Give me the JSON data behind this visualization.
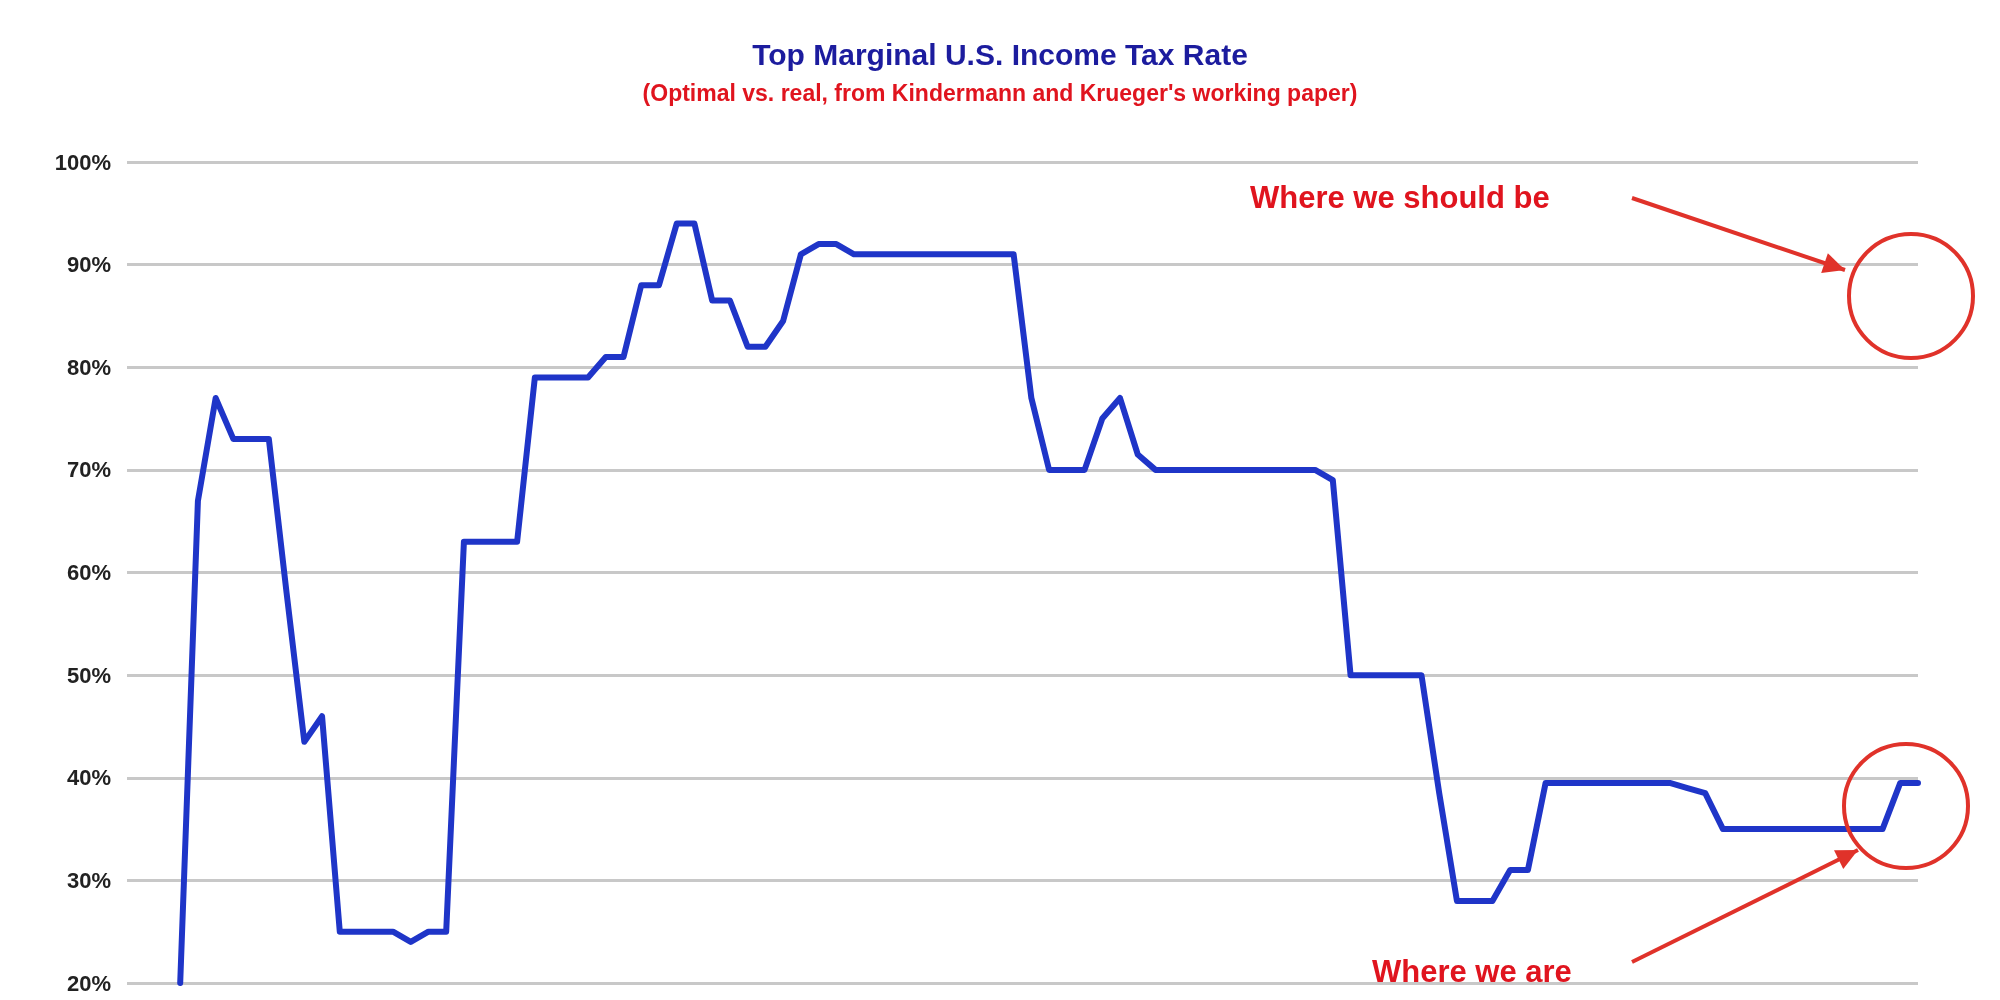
{
  "chart_data": {
    "type": "line",
    "title": "Top Marginal U.S. Income Tax Rate",
    "subtitle": "(Optimal vs. real, from Kindermann and Krueger's working paper)",
    "categories": [
      null,
      null,
      null,
      null,
      null,
      null,
      null,
      null,
      null,
      null,
      null,
      null,
      null,
      null,
      null,
      null,
      null,
      null,
      null,
      null,
      null,
      null,
      null,
      null,
      null,
      null,
      null,
      null,
      null,
      null,
      null,
      null,
      null,
      null,
      null,
      null,
      null,
      null,
      null,
      null,
      null,
      null,
      null,
      null,
      null,
      null,
      null,
      null,
      null,
      null,
      null,
      null,
      null,
      null,
      null,
      null,
      null,
      null,
      null,
      null,
      null,
      null,
      null,
      null,
      null,
      null,
      null,
      null,
      null,
      null,
      null,
      null,
      null,
      null,
      null,
      null,
      null,
      null,
      null,
      null,
      null,
      null,
      null,
      null,
      null,
      null,
      null,
      null,
      null,
      null,
      null,
      null,
      null,
      null,
      null,
      null,
      null,
      null,
      null,
      null,
      null,
      null
    ],
    "series": [
      {
        "color": "#1f35c8",
        "values": [
          null,
          null,
          null,
          20,
          67,
          77,
          73,
          73,
          73,
          58,
          43.5,
          46,
          25,
          25,
          25,
          25,
          24,
          25,
          25,
          63,
          63,
          63,
          63,
          79,
          79,
          79,
          79,
          81,
          81,
          88,
          88,
          94,
          94,
          86.5,
          86.5,
          82,
          82,
          84.5,
          91,
          92,
          92,
          91,
          91,
          91,
          91,
          91,
          91,
          91,
          91,
          91,
          91,
          77,
          70,
          70,
          70,
          75,
          77,
          71.5,
          70,
          70,
          70,
          70,
          70,
          70,
          70,
          70,
          70,
          70,
          69,
          50,
          50,
          50,
          50,
          50,
          38.5,
          28,
          28,
          28,
          31,
          31,
          39.5,
          39.5,
          39.5,
          39.5,
          39.5,
          39.5,
          39.5,
          39.5,
          39,
          38.5,
          35,
          35,
          35,
          35,
          35,
          35,
          35,
          35,
          35,
          35,
          39.5,
          39.5
        ]
      }
    ],
    "ylim": [
      20,
      100
    ],
    "yticks": [
      {
        "value": 20,
        "label": "20%"
      },
      {
        "value": 30,
        "label": "30%"
      },
      {
        "value": 40,
        "label": "40%"
      },
      {
        "value": 50,
        "label": "50%"
      },
      {
        "value": 60,
        "label": "60%"
      },
      {
        "value": 70,
        "label": "70%"
      },
      {
        "value": 80,
        "label": "80%"
      },
      {
        "value": 90,
        "label": "90%"
      },
      {
        "value": 100,
        "label": "100%"
      }
    ],
    "tick_labels": "y",
    "grid": "y",
    "marker": "none",
    "line_style": "solid",
    "annotations": [
      "Where we should be",
      "Where we are"
    ]
  }
}
